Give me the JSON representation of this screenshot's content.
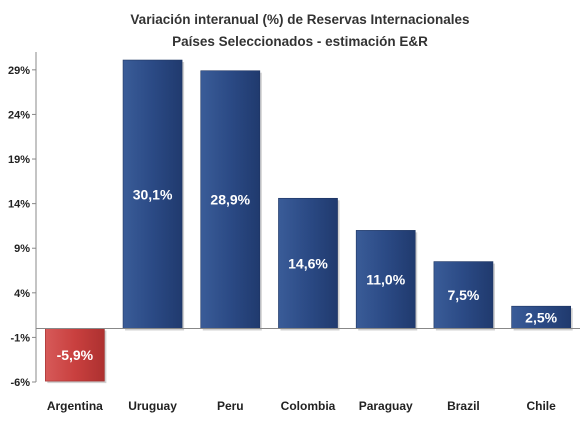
{
  "chart_data": {
    "type": "bar",
    "title": "Variación interanual (%) de Reservas Internacionales",
    "subtitle": "Países Seleccionados - estimación E&R",
    "categories": [
      "Argentina",
      "Uruguay",
      "Peru",
      "Colombia",
      "Paraguay",
      "Brazil",
      "Chile"
    ],
    "values": [
      -5.9,
      30.1,
      28.9,
      14.6,
      11.0,
      7.5,
      2.5
    ],
    "data_labels": [
      "-5,9%",
      "30,1%",
      "28,9%",
      "14,6%",
      "11,0%",
      "7,5%",
      "2,5%"
    ],
    "y_ticks": [
      -6,
      -1,
      4,
      9,
      14,
      19,
      24,
      29
    ],
    "y_tick_labels": [
      "-6%",
      "-1%",
      "4%",
      "9%",
      "14%",
      "19%",
      "24%",
      "29%"
    ],
    "ylim": [
      -6,
      31
    ],
    "xlabel": "",
    "ylabel": "",
    "grid": false,
    "legend": "none",
    "colors": {
      "positive": "#2e4d87",
      "negative": "#c9403f",
      "axis": "#888888"
    }
  }
}
